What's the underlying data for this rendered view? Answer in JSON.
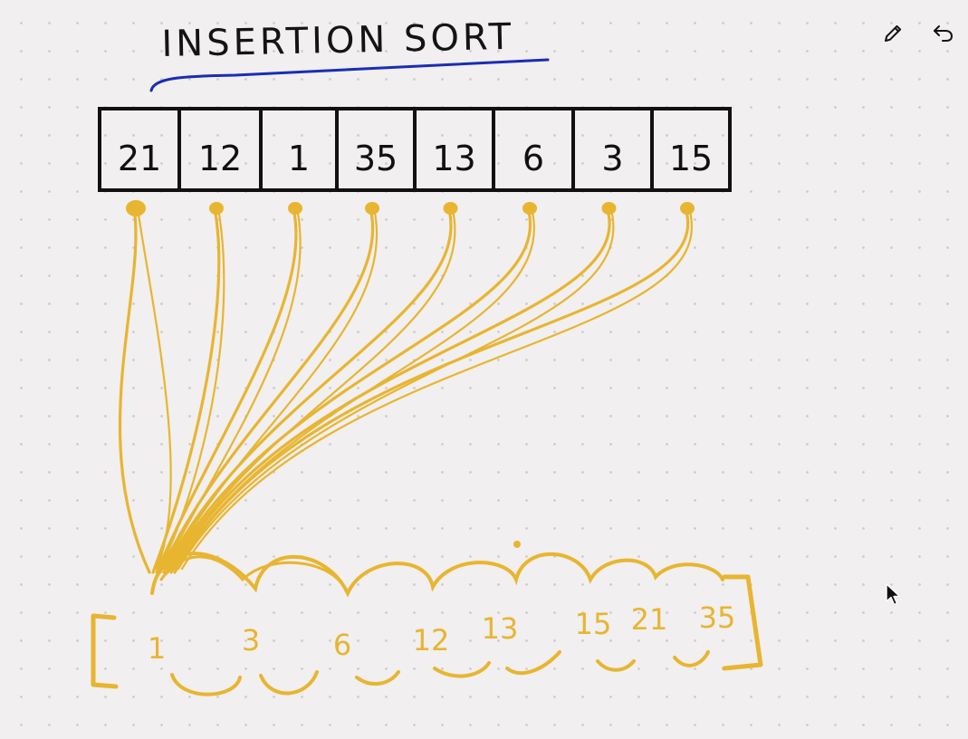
{
  "title": "INSERTION SORT",
  "toolbar": {
    "edit_icon": "pencil-icon",
    "undo_icon": "undo-icon"
  },
  "colors": {
    "background": "#f1efef",
    "ink": "#111111",
    "arrow": "#e8b531",
    "underline": "#1a2db5"
  },
  "array": {
    "values": [
      "21",
      "12",
      "1",
      "35",
      "13",
      "6",
      "3",
      "15"
    ]
  },
  "result": {
    "values": [
      "1",
      "3",
      "6",
      "12",
      "13",
      "15",
      "21",
      "35"
    ]
  }
}
